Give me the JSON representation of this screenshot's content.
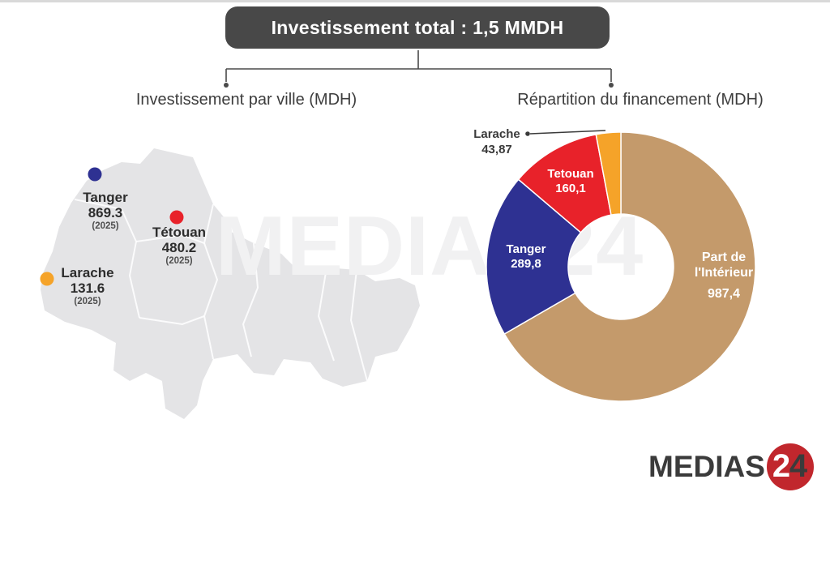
{
  "header": {
    "total_box": "Investissement total : 1,5 MMDH"
  },
  "sections": {
    "map_title": "Investissement par ville (MDH)",
    "donut_title": "Répartition du financement (MDH)"
  },
  "map_cities": [
    {
      "name": "Tanger",
      "value": "869.3",
      "year": "(2025)",
      "color": "#2E3192"
    },
    {
      "name": "Tétouan",
      "value": "480.2",
      "year": "(2025)",
      "color": "#E8222A"
    },
    {
      "name": "Larache",
      "value": "131.6",
      "year": "(2025)",
      "color": "#F5A329"
    }
  ],
  "donut_labels": {
    "interieur_line1": "Part de",
    "interieur_line2": "l'Intérieur",
    "interieur_value": "987,4",
    "tanger_name": "Tanger",
    "tanger_value": "289,8",
    "tetouan_name": "Tetouan",
    "tetouan_value": "160,1",
    "larache_name": "Larache",
    "larache_value": "43,87"
  },
  "chart_data": [
    {
      "type": "pie",
      "title": "Répartition du financement (MDH)",
      "categories": [
        "Part de l'Intérieur",
        "Tanger",
        "Tetouan",
        "Larache"
      ],
      "values": [
        987.4,
        289.8,
        160.1,
        43.87
      ],
      "display_values": [
        "987,4",
        "289,8",
        "160,1",
        "43,87"
      ],
      "colors": [
        "#C49A6B",
        "#2E3192",
        "#E8222A",
        "#F5A329"
      ],
      "donut_hole_ratio": 0.39,
      "start_angle_deg": 0,
      "direction": "clockwise",
      "legend_position": "labels-on-slices"
    },
    {
      "type": "scatter",
      "title": "Investissement par ville (MDH)",
      "points": [
        {
          "label": "Tanger",
          "value": 869.3,
          "year": 2025,
          "color": "#2E3192"
        },
        {
          "label": "Tétouan",
          "value": 480.2,
          "year": 2025,
          "color": "#E8222A"
        },
        {
          "label": "Larache",
          "value": 131.6,
          "year": 2025,
          "color": "#F5A329"
        }
      ]
    }
  ],
  "watermark": "MEDIAS24",
  "logo": {
    "word": "MEDIAS",
    "badge_digit_2": "2",
    "badge_digit_4": "4",
    "badge_color": "#c1272d"
  },
  "palette": {
    "title_box_bg": "#484848",
    "map_fill": "#e4e4e6",
    "connector": "#4a4a4a"
  }
}
